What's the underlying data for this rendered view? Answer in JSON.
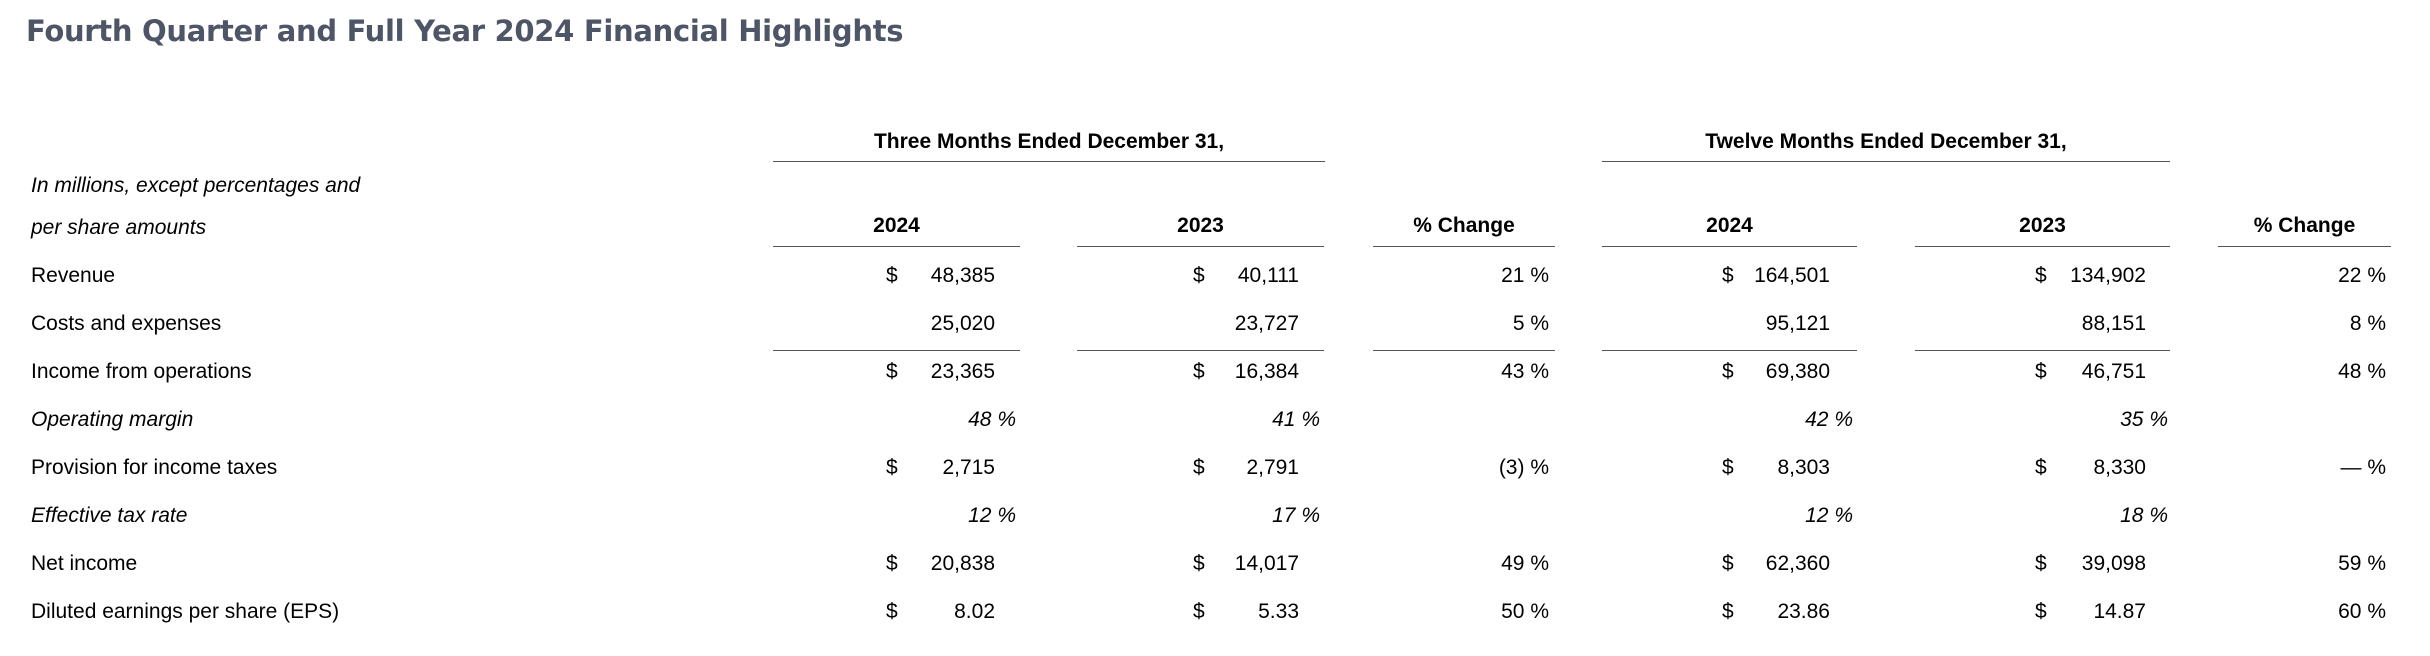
{
  "title": "Fourth Quarter and Full Year 2024 Financial Highlights",
  "units_label": [
    "In millions, except percentages and",
    "per share amounts"
  ],
  "groups": {
    "three_months": "Three Months Ended December 31,",
    "twelve_months": "Twelve Months Ended December 31,"
  },
  "columns": {
    "q2024": "2024",
    "q2023": "2023",
    "q_change": "% Change",
    "y2024": "2024",
    "y2023": "2023",
    "y_change": "% Change"
  },
  "currency_symbol": "$",
  "rows": [
    {
      "label": "Revenue",
      "italic": false,
      "dollar": true,
      "q2024": "48,385",
      "q2023": "40,111",
      "q_change": "21 %",
      "y2024": "164,501",
      "y2023": "134,902",
      "y_change": "22 %"
    },
    {
      "label": "Costs and expenses",
      "italic": false,
      "dollar": false,
      "q2024": "25,020",
      "q2023": "23,727",
      "q_change": "5 %",
      "y2024": "95,121",
      "y2023": "88,151",
      "y_change": "8 %"
    },
    {
      "label": "Income from operations",
      "italic": false,
      "dollar": true,
      "q2024": "23,365",
      "q2023": "16,384",
      "q_change": "43 %",
      "y2024": "69,380",
      "y2023": "46,751",
      "y_change": "48 %"
    },
    {
      "label": "Operating margin",
      "italic": true,
      "dollar": false,
      "q2024": "48 %",
      "q2023": "41 %",
      "q_change": "",
      "y2024": "42 %",
      "y2023": "35 %",
      "y_change": ""
    },
    {
      "label": "Provision for income taxes",
      "italic": false,
      "dollar": true,
      "q2024": "2,715",
      "q2023": "2,791",
      "q_change": "(3) %",
      "y2024": "8,303",
      "y2023": "8,330",
      "y_change": "— %"
    },
    {
      "label": "Effective tax rate",
      "italic": true,
      "dollar": false,
      "q2024": "12 %",
      "q2023": "17 %",
      "q_change": "",
      "y2024": "12 %",
      "y2023": "18 %",
      "y_change": ""
    },
    {
      "label": "Net income",
      "italic": false,
      "dollar": true,
      "q2024": "20,838",
      "q2023": "14,017",
      "q_change": "49 %",
      "y2024": "62,360",
      "y2023": "39,098",
      "y_change": "59 %"
    },
    {
      "label": "Diluted earnings per share (EPS)",
      "italic": false,
      "dollar": true,
      "q2024": "8.02",
      "q2023": "5.33",
      "q_change": "50 %",
      "y2024": "23.86",
      "y2023": "14.87",
      "y_change": "60 %"
    }
  ]
}
